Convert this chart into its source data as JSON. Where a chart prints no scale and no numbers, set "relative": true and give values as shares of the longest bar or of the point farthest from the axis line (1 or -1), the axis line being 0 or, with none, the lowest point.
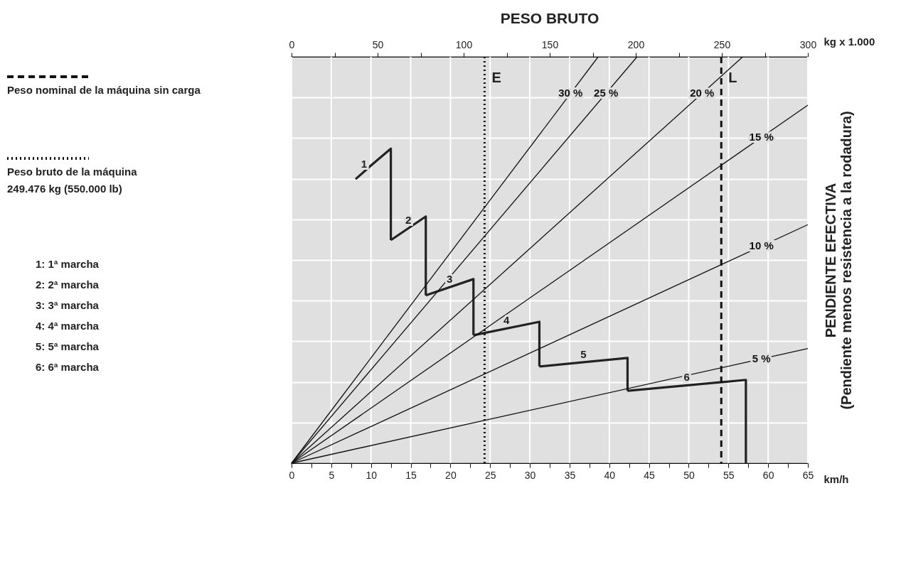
{
  "chart_data": {
    "type": "line",
    "relative": true,
    "title": "PESO BRUTO",
    "ylabel": "PENDIENTE EFECTIVA\n(Pendiente menos resistencia a la rodadura)",
    "xlabel": "km/h",
    "xlim": [
      0,
      65
    ],
    "xticks": [
      0,
      {
        "value": 2.5,
        "label": null
      },
      5,
      {
        "value": 7.5,
        "label": null
      },
      10,
      {
        "value": 12.5,
        "label": null
      },
      15,
      {
        "value": 17.5,
        "label": null
      },
      20,
      {
        "value": 22.5,
        "label": null
      },
      25,
      {
        "value": 27.5,
        "label": null
      },
      30,
      {
        "value": 32.5,
        "label": null
      },
      35,
      {
        "value": 37.5,
        "label": null
      },
      40,
      {
        "value": 42.5,
        "label": null
      },
      45,
      {
        "value": 47.5,
        "label": null
      },
      50,
      {
        "value": 52.5,
        "label": null
      },
      55,
      {
        "value": 57.5,
        "label": null
      },
      60,
      {
        "value": 62.5,
        "label": null
      },
      65
    ],
    "x2label": "kg x 1.000",
    "x2lim": [
      0,
      300
    ],
    "x2ticks": [
      0,
      {
        "value": 25,
        "label": null
      },
      50,
      {
        "value": 75,
        "label": null
      },
      100,
      {
        "value": 125,
        "label": null
      },
      150,
      {
        "value": 175,
        "label": null
      },
      200,
      {
        "value": 225,
        "label": null
      },
      250,
      {
        "value": 275,
        "label": null
      },
      300
    ],
    "grid": true,
    "series": [
      {
        "name": "1",
        "color": "#222222",
        "x": [
          8.06,
          10.2,
          12.5,
          12.5
        ],
        "values": [
          0.699,
          0.736,
          0.774,
          0.549
        ]
      },
      {
        "name": "2",
        "color": "#222222",
        "x": [
          12.5,
          16.9,
          16.9
        ],
        "values": [
          0.549,
          0.607,
          0.413
        ]
      },
      {
        "name": "3",
        "color": "#222222",
        "x": [
          16.9,
          22.9,
          22.9
        ],
        "values": [
          0.413,
          0.453,
          0.315
        ]
      },
      {
        "name": "4",
        "color": "#222222",
        "x": [
          22.9,
          31.2,
          31.2
        ],
        "values": [
          0.315,
          0.348,
          0.238
        ]
      },
      {
        "name": "5",
        "color": "#222222",
        "x": [
          31.2,
          42.3,
          42.3
        ],
        "values": [
          0.238,
          0.259,
          0.178
        ]
      },
      {
        "name": "6",
        "color": "#222222",
        "x": [
          42.3,
          57.2,
          57.2
        ],
        "values": [
          0.178,
          0.205,
          0
        ]
      },
      {
        "name": "30 %",
        "color": "#111111",
        "x": [
          0,
          38.6
        ],
        "values": [
          0,
          1
        ]
      },
      {
        "name": "25 %",
        "color": "#111111",
        "x": [
          0,
          43.5
        ],
        "values": [
          0,
          1
        ]
      },
      {
        "name": "20 %",
        "color": "#111111",
        "x": [
          0,
          56.8
        ],
        "values": [
          0,
          1
        ]
      },
      {
        "name": "15 %",
        "color": "#111111",
        "x": [
          0,
          65
        ],
        "values": [
          0,
          0.881
        ]
      },
      {
        "name": "10 %",
        "color": "#111111",
        "x": [
          0,
          65
        ],
        "values": [
          0,
          0.587
        ]
      },
      {
        "name": "5 %",
        "color": "#111111",
        "x": [
          0,
          65
        ],
        "values": [
          0,
          0.282
        ]
      }
    ],
    "ref_lines": [
      {
        "axis": "x",
        "value": 24.3,
        "label": "E",
        "line_style": "dotted",
        "color": "#111111"
      },
      {
        "axis": "x",
        "value": 54.1,
        "label": "L",
        "line_style": "dashed",
        "color": "#111111"
      }
    ],
    "annotations": [
      "Peso nominal de la máquina sin carga",
      "Peso bruto de la máquina\n249.476 kg (550.000 lb)",
      "1: 1ª marcha",
      "2: 2ª marcha",
      "3: 3ª marcha",
      "4: 4ª marcha",
      "5: 5ª marcha",
      "6: 6ª marcha"
    ]
  }
}
